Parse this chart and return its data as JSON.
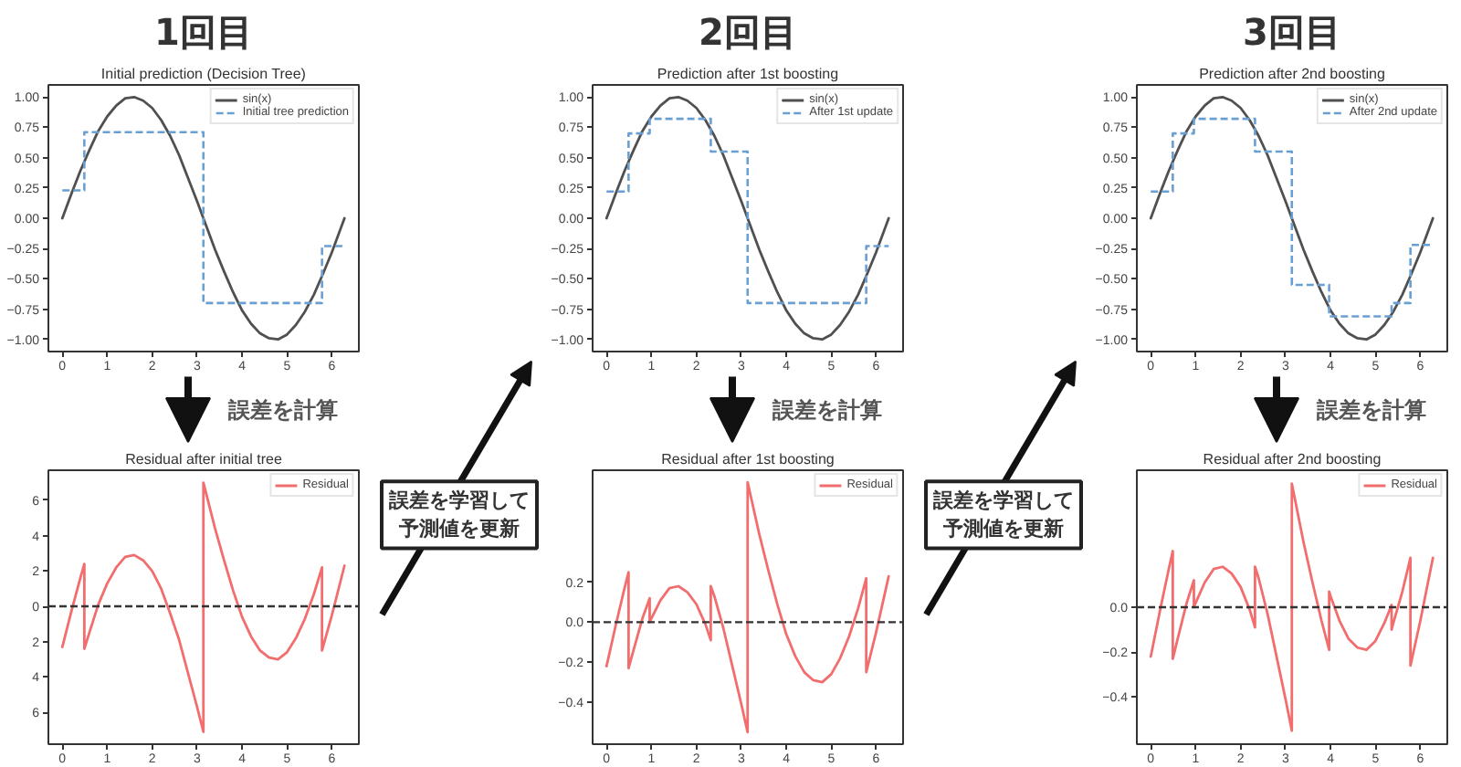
{
  "chart_data": [
    {
      "type": "line",
      "title": "1回目",
      "subtitle": "Initial prediction (Decision Tree)",
      "xlim": [
        -0.31,
        6.6
      ],
      "ylim": [
        -1.1,
        1.1
      ],
      "xticks": [
        0,
        1,
        2,
        3,
        4,
        5,
        6
      ],
      "yticks": [
        {
          "value": -1,
          "label": "−1.00"
        },
        {
          "value": -0.75,
          "label": "−0.75"
        },
        {
          "value": -0.5,
          "label": "−0.50"
        },
        {
          "value": -0.25,
          "label": "−0.25"
        },
        {
          "value": 0,
          "label": "0.00"
        },
        {
          "value": 0.25,
          "label": "0.25"
        },
        {
          "value": 0.5,
          "label": "0.50"
        },
        {
          "value": 0.75,
          "label": "0.75"
        },
        {
          "value": 1,
          "label": "1.00"
        }
      ],
      "legend": "top right",
      "annotations": [
        "誤差を計算"
      ],
      "series": [
        {
          "name": "sin(x)",
          "type": "line",
          "color": "#505050",
          "x": [
            0,
            0.2,
            0.4,
            0.6,
            0.8,
            1.0,
            1.2,
            1.4,
            1.6,
            1.8,
            2.0,
            2.2,
            2.4,
            2.6,
            2.8,
            3.0,
            3.2,
            3.4,
            3.6,
            3.8,
            4.0,
            4.2,
            4.4,
            4.6,
            4.8,
            5.0,
            5.2,
            5.4,
            5.6,
            5.8,
            6.0,
            6.2,
            6.28
          ],
          "values": [
            0,
            0.2,
            0.39,
            0.56,
            0.72,
            0.84,
            0.93,
            0.99,
            1.0,
            0.97,
            0.91,
            0.81,
            0.68,
            0.52,
            0.33,
            0.14,
            -0.06,
            -0.26,
            -0.44,
            -0.61,
            -0.76,
            -0.87,
            -0.95,
            -0.99,
            -1.0,
            -0.96,
            -0.88,
            -0.77,
            -0.63,
            -0.46,
            -0.28,
            -0.08,
            0.0
          ]
        },
        {
          "name": "Initial tree prediction",
          "type": "step",
          "color": "#6a9fd4",
          "line_style": "dashed",
          "x": [
            0,
            0.49,
            3.14,
            5.78,
            6.28
          ],
          "values": [
            0.23,
            0.71,
            -0.7,
            -0.23,
            -0.23
          ]
        }
      ]
    },
    {
      "type": "line",
      "title": "2回目",
      "subtitle": "Prediction after 1st boosting",
      "xlim": [
        -0.31,
        6.6
      ],
      "ylim": [
        -1.1,
        1.1
      ],
      "xticks": [
        0,
        1,
        2,
        3,
        4,
        5,
        6
      ],
      "yticks": [
        {
          "value": -1,
          "label": "−1.00"
        },
        {
          "value": -0.75,
          "label": "−0.75"
        },
        {
          "value": -0.5,
          "label": "−0.50"
        },
        {
          "value": -0.25,
          "label": "−0.25"
        },
        {
          "value": 0,
          "label": "0.00"
        },
        {
          "value": 0.25,
          "label": "0.25"
        },
        {
          "value": 0.5,
          "label": "0.50"
        },
        {
          "value": 0.75,
          "label": "0.75"
        },
        {
          "value": 1,
          "label": "1.00"
        }
      ],
      "legend": "top right",
      "annotations": [
        "誤差を計算"
      ],
      "series": [
        {
          "name": "sin(x)",
          "type": "line",
          "color": "#505050",
          "x": [
            0,
            0.2,
            0.4,
            0.6,
            0.8,
            1.0,
            1.2,
            1.4,
            1.6,
            1.8,
            2.0,
            2.2,
            2.4,
            2.6,
            2.8,
            3.0,
            3.2,
            3.4,
            3.6,
            3.8,
            4.0,
            4.2,
            4.4,
            4.6,
            4.8,
            5.0,
            5.2,
            5.4,
            5.6,
            5.8,
            6.0,
            6.2,
            6.28
          ],
          "values": [
            0,
            0.2,
            0.39,
            0.56,
            0.72,
            0.84,
            0.93,
            0.99,
            1.0,
            0.97,
            0.91,
            0.81,
            0.68,
            0.52,
            0.33,
            0.14,
            -0.06,
            -0.26,
            -0.44,
            -0.61,
            -0.76,
            -0.87,
            -0.95,
            -0.99,
            -1.0,
            -0.96,
            -0.88,
            -0.77,
            -0.63,
            -0.46,
            -0.28,
            -0.08,
            0.0
          ]
        },
        {
          "name": "After 1st update",
          "type": "step",
          "color": "#6a9fd4",
          "line_style": "dashed",
          "x": [
            0,
            0.49,
            0.96,
            2.32,
            3.14,
            5.78,
            6.28
          ],
          "values": [
            0.22,
            0.7,
            0.82,
            0.55,
            -0.7,
            -0.23,
            -0.23
          ]
        }
      ]
    },
    {
      "type": "line",
      "title": "3回目",
      "subtitle": "Prediction after 2nd boosting",
      "xlim": [
        -0.31,
        6.6
      ],
      "ylim": [
        -1.1,
        1.1
      ],
      "xticks": [
        0,
        1,
        2,
        3,
        4,
        5,
        6
      ],
      "yticks": [
        {
          "value": -1,
          "label": "−1.00"
        },
        {
          "value": -0.75,
          "label": "−0.75"
        },
        {
          "value": -0.5,
          "label": "−0.50"
        },
        {
          "value": -0.25,
          "label": "−0.25"
        },
        {
          "value": 0,
          "label": "0.00"
        },
        {
          "value": 0.25,
          "label": "0.25"
        },
        {
          "value": 0.5,
          "label": "0.50"
        },
        {
          "value": 0.75,
          "label": "0.75"
        },
        {
          "value": 1,
          "label": "1.00"
        }
      ],
      "legend": "top right",
      "annotations": [
        "誤差を計算"
      ],
      "series": [
        {
          "name": "sin(x)",
          "type": "line",
          "color": "#505050",
          "x": [
            0,
            0.2,
            0.4,
            0.6,
            0.8,
            1.0,
            1.2,
            1.4,
            1.6,
            1.8,
            2.0,
            2.2,
            2.4,
            2.6,
            2.8,
            3.0,
            3.2,
            3.4,
            3.6,
            3.8,
            4.0,
            4.2,
            4.4,
            4.6,
            4.8,
            5.0,
            5.2,
            5.4,
            5.6,
            5.8,
            6.0,
            6.2,
            6.28
          ],
          "values": [
            0,
            0.2,
            0.39,
            0.56,
            0.72,
            0.84,
            0.93,
            0.99,
            1.0,
            0.97,
            0.91,
            0.81,
            0.68,
            0.52,
            0.33,
            0.14,
            -0.06,
            -0.26,
            -0.44,
            -0.61,
            -0.76,
            -0.87,
            -0.95,
            -0.99,
            -1.0,
            -0.96,
            -0.88,
            -0.77,
            -0.63,
            -0.46,
            -0.28,
            -0.08,
            0.0
          ]
        },
        {
          "name": "After 2nd update",
          "type": "step",
          "color": "#6a9fd4",
          "line_style": "dashed",
          "x": [
            0,
            0.49,
            0.96,
            2.32,
            3.14,
            3.97,
            5.36,
            5.78,
            6.28
          ],
          "values": [
            0.22,
            0.7,
            0.82,
            0.55,
            -0.55,
            -0.81,
            -0.7,
            -0.22,
            -0.22
          ]
        }
      ]
    },
    {
      "type": "line",
      "title": "Residual after initial tree",
      "xlim": [
        -0.31,
        6.6
      ],
      "ylim": [
        -7.8,
        7.7
      ],
      "xticks": [
        0,
        1,
        2,
        3,
        4,
        5,
        6
      ],
      "yticks": [
        {
          "value": -6,
          "label": "6"
        },
        {
          "value": -4,
          "label": "4"
        },
        {
          "value": -2,
          "label": "2"
        },
        0,
        2,
        4,
        6
      ],
      "legend": "top right",
      "ref_lines": [
        {
          "axis": "y",
          "value": 0,
          "color": "#333333",
          "line_style": "dashed"
        }
      ],
      "annotations": [
        "誤差を学習して予測値を更新"
      ],
      "x": [
        0,
        0.2,
        0.4,
        0.49,
        0.49,
        0.6,
        0.8,
        1.0,
        1.2,
        1.4,
        1.6,
        1.8,
        2.0,
        2.2,
        2.4,
        2.6,
        2.8,
        3.0,
        3.14,
        3.14,
        3.2,
        3.4,
        3.6,
        3.8,
        4.0,
        4.2,
        4.4,
        4.6,
        4.8,
        5.0,
        5.2,
        5.4,
        5.6,
        5.78,
        5.78,
        6.0,
        6.2,
        6.28
      ],
      "series": [
        {
          "name": "Residual",
          "color": "#f26d6d",
          "values": [
            -2.3,
            -0.3,
            1.6,
            2.4,
            -2.4,
            -1.5,
            0.1,
            1.3,
            2.2,
            2.8,
            2.9,
            2.6,
            2.0,
            1.0,
            -0.4,
            -1.9,
            -3.8,
            -5.7,
            -7.1,
            7.0,
            6.4,
            4.4,
            2.6,
            0.9,
            -0.6,
            -1.7,
            -2.5,
            -2.9,
            -3.0,
            -2.6,
            -1.8,
            -0.7,
            0.7,
            2.2,
            -2.5,
            -0.5,
            1.5,
            2.3
          ]
        }
      ]
    },
    {
      "type": "line",
      "title": "Residual after 1st boosting",
      "xlim": [
        -0.31,
        6.6
      ],
      "ylim": [
        -0.61,
        0.76
      ],
      "xticks": [
        0,
        1,
        2,
        3,
        4,
        5,
        6
      ],
      "yticks": [
        {
          "value": -0.4,
          "label": "−0.4"
        },
        {
          "value": -0.2,
          "label": "−0.2"
        },
        {
          "value": 0,
          "label": "0.0"
        },
        0.2
      ],
      "legend": "top right",
      "ref_lines": [
        {
          "axis": "y",
          "value": 0,
          "color": "#333333",
          "line_style": "dashed"
        }
      ],
      "annotations": [
        "誤差を学習して予測値を更新"
      ],
      "x": [
        0,
        0.2,
        0.4,
        0.49,
        0.49,
        0.6,
        0.8,
        0.96,
        0.96,
        1.0,
        1.2,
        1.4,
        1.6,
        1.8,
        2.0,
        2.2,
        2.32,
        2.32,
        2.4,
        2.6,
        2.8,
        3.0,
        3.14,
        3.14,
        3.2,
        3.4,
        3.6,
        3.8,
        4.0,
        4.2,
        4.4,
        4.6,
        4.8,
        5.0,
        5.2,
        5.4,
        5.6,
        5.78,
        5.78,
        6.0,
        6.2,
        6.28
      ],
      "series": [
        {
          "name": "Residual",
          "color": "#f26d6d",
          "values": [
            -0.22,
            -0.02,
            0.17,
            0.25,
            -0.23,
            -0.14,
            0.02,
            0.12,
            0.0,
            0.02,
            0.11,
            0.17,
            0.18,
            0.15,
            0.09,
            -0.01,
            -0.09,
            0.18,
            0.13,
            -0.03,
            -0.22,
            -0.41,
            -0.55,
            0.7,
            0.64,
            0.44,
            0.26,
            0.09,
            -0.06,
            -0.17,
            -0.25,
            -0.29,
            -0.3,
            -0.26,
            -0.18,
            -0.07,
            0.07,
            0.22,
            -0.25,
            -0.05,
            0.15,
            0.23
          ]
        }
      ]
    },
    {
      "type": "line",
      "title": "Residual after 2nd boosting",
      "xlim": [
        -0.31,
        6.6
      ],
      "ylim": [
        -0.61,
        0.61
      ],
      "xticks": [
        0,
        1,
        2,
        3,
        4,
        5,
        6
      ],
      "yticks": [
        {
          "value": -0.4,
          "label": "−0.4"
        },
        {
          "value": -0.2,
          "label": "−0.2"
        },
        {
          "value": 0,
          "label": "0.0"
        }
      ],
      "legend": "top right",
      "ref_lines": [
        {
          "axis": "y",
          "value": 0,
          "color": "#333333",
          "line_style": "dashed"
        }
      ],
      "x": [
        0,
        0.2,
        0.4,
        0.49,
        0.49,
        0.6,
        0.8,
        0.96,
        0.96,
        1.0,
        1.2,
        1.4,
        1.6,
        1.8,
        2.0,
        2.2,
        2.32,
        2.32,
        2.4,
        2.6,
        2.8,
        3.0,
        3.14,
        3.14,
        3.2,
        3.4,
        3.6,
        3.8,
        3.97,
        3.97,
        4.0,
        4.2,
        4.4,
        4.6,
        4.8,
        5.0,
        5.2,
        5.36,
        5.36,
        5.4,
        5.6,
        5.78,
        5.78,
        6.0,
        6.2,
        6.28
      ],
      "series": [
        {
          "name": "Residual",
          "color": "#f26d6d",
          "values": [
            -0.22,
            -0.02,
            0.17,
            0.25,
            -0.23,
            -0.14,
            0.02,
            0.12,
            0.0,
            0.02,
            0.11,
            0.17,
            0.18,
            0.15,
            0.09,
            -0.01,
            -0.09,
            0.18,
            0.13,
            -0.03,
            -0.22,
            -0.41,
            -0.55,
            0.55,
            0.49,
            0.29,
            0.11,
            -0.06,
            -0.19,
            0.07,
            0.05,
            -0.06,
            -0.14,
            -0.18,
            -0.19,
            -0.15,
            -0.07,
            0.01,
            -0.1,
            -0.07,
            0.07,
            0.22,
            -0.26,
            -0.06,
            0.14,
            0.22
          ]
        }
      ]
    }
  ]
}
